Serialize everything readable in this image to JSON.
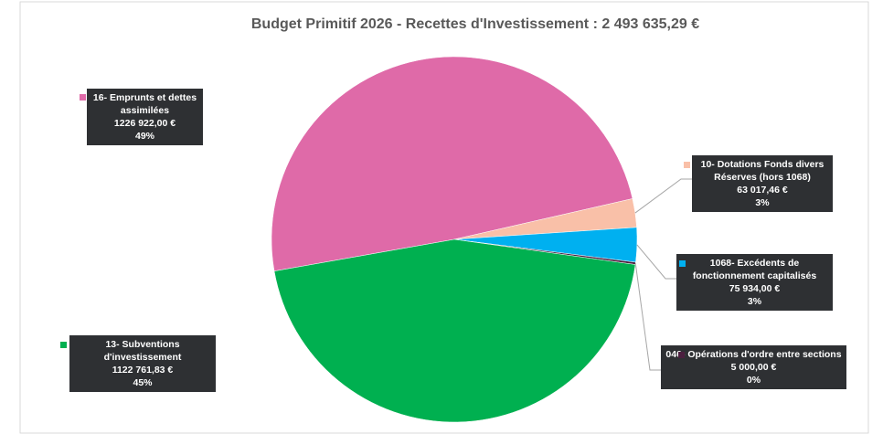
{
  "chart_data": {
    "type": "pie",
    "title": "Budget Primitif 2026 - Recettes d'Investissement : 2 493 635,29 €",
    "categories": [
      "16- Emprunts et dettes assimilées",
      "10- Dotations Fonds divers Réserves (hors 1068)",
      "1068- Excédents de fonctionnement capitalisés",
      "040- Opérations d'ordre entre sections",
      "13- Subventions d'investissement"
    ],
    "values": [
      1226922.0,
      63017.46,
      75934.0,
      5000.0,
      1122761.83
    ],
    "value_labels": [
      "1226 922,00 €",
      "63 017,46 €",
      "75 934,00 €",
      "5 000,00 €",
      "1122 761,83 €"
    ],
    "percent_labels": [
      "49%",
      "3%",
      "3%",
      "0%",
      "45%"
    ],
    "colors": [
      "#df6aa8",
      "#f9c0a8",
      "#00b0f0",
      "#4b1f3f",
      "#00b050"
    ]
  }
}
